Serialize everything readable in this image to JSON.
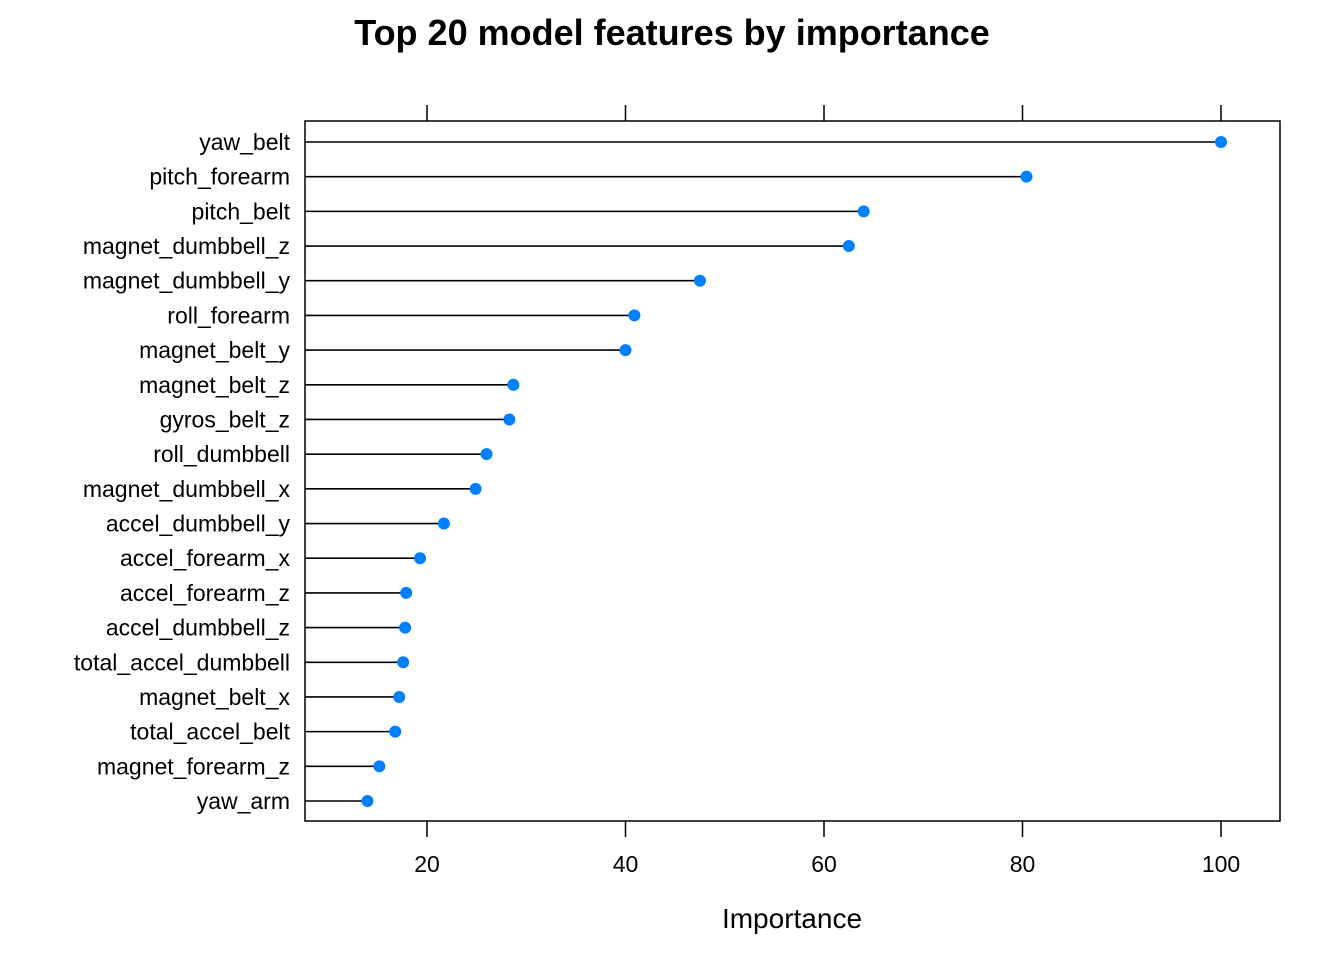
{
  "chart_data": {
    "type": "dotplot",
    "title": "Top 20 model features by importance",
    "xlabel": "Importance",
    "ylabel": "",
    "xlim": [
      8,
      106
    ],
    "xticks": [
      20,
      40,
      60,
      80,
      100
    ],
    "grid": false,
    "legend": "none",
    "point_color": "#0080FF",
    "line_color": "#000000",
    "categories": [
      "yaw_belt",
      "pitch_forearm",
      "pitch_belt",
      "magnet_dumbbell_z",
      "magnet_dumbbell_y",
      "roll_forearm",
      "magnet_belt_y",
      "magnet_belt_z",
      "gyros_belt_z",
      "roll_dumbbell",
      "magnet_dumbbell_x",
      "accel_dumbbell_y",
      "accel_forearm_x",
      "accel_forearm_z",
      "accel_dumbbell_z",
      "total_accel_dumbbell",
      "magnet_belt_x",
      "total_accel_belt",
      "magnet_forearm_z",
      "yaw_arm"
    ],
    "values": [
      100,
      80.4,
      64.0,
      62.5,
      47.5,
      40.9,
      40.0,
      28.7,
      28.3,
      26.0,
      24.9,
      21.7,
      19.3,
      17.9,
      17.8,
      17.6,
      17.2,
      16.8,
      15.2,
      14.0
    ]
  }
}
